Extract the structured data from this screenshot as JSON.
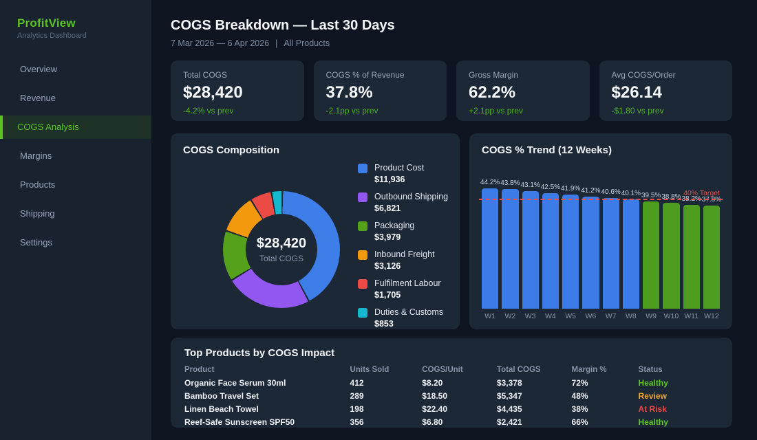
{
  "app": {
    "name": "ProfitView",
    "tagline": "Analytics Dashboard"
  },
  "sidebar": {
    "items": [
      {
        "label": "Overview",
        "active": false
      },
      {
        "label": "Revenue",
        "active": false
      },
      {
        "label": "COGS Analysis",
        "active": true
      },
      {
        "label": "Margins",
        "active": false
      },
      {
        "label": "Products",
        "active": false
      },
      {
        "label": "Shipping",
        "active": false
      },
      {
        "label": "Settings",
        "active": false
      }
    ]
  },
  "header": {
    "title": "COGS Breakdown — Last 30 Days",
    "date_range": "7 Mar 2026 — 6 Apr 2026",
    "separator": "|",
    "filter": "All Products"
  },
  "kpis": [
    {
      "label": "Total COGS",
      "value": "$28,420",
      "delta": "-4.2% vs prev"
    },
    {
      "label": "COGS % of Revenue",
      "value": "37.8%",
      "delta": "-2.1pp vs prev"
    },
    {
      "label": "Gross Margin",
      "value": "62.2%",
      "delta": "+2.1pp vs prev"
    },
    {
      "label": "Avg COGS/Order",
      "value": "$26.14",
      "delta": "-$1.80 vs prev"
    }
  ],
  "colors": {
    "accent_green": "#5cc321",
    "positive_delta": "#4fb224",
    "target_red": "#e2514d",
    "status_healthy": "#5cc328",
    "status_review": "#f5a623",
    "status_at_risk": "#ef4444"
  },
  "chart_data": [
    {
      "type": "pie",
      "title": "COGS Composition",
      "center_value": "$28,420",
      "center_label": "Total COGS",
      "legend_position": "right",
      "segments": [
        {
          "label": "Product Cost",
          "value": 11936,
          "display": "$11,936",
          "color": "#3d7ee8"
        },
        {
          "label": "Outbound Shipping",
          "value": 6821,
          "display": "$6,821",
          "color": "#9257f0"
        },
        {
          "label": "Packaging",
          "value": 3979,
          "display": "$3,979",
          "color": "#55a11c"
        },
        {
          "label": "Inbound Freight",
          "value": 3126,
          "display": "$3,126",
          "color": "#f2990d"
        },
        {
          "label": "Fulfilment Labour",
          "value": 1705,
          "display": "$1,705",
          "color": "#ec4a44"
        },
        {
          "label": "Duties & Customs",
          "value": 853,
          "display": "$853",
          "color": "#16b8ce"
        }
      ]
    },
    {
      "type": "bar",
      "title": "COGS % Trend (12 Weeks)",
      "categories": [
        "W1",
        "W2",
        "W3",
        "W4",
        "W5",
        "W6",
        "W7",
        "W8",
        "W9",
        "W10",
        "W11",
        "W12"
      ],
      "values": [
        44.2,
        43.8,
        43.1,
        42.5,
        41.9,
        41.2,
        40.6,
        40.1,
        39.5,
        38.8,
        38.2,
        37.8
      ],
      "bar_colors": [
        "#3b7ce8",
        "#3b7ce8",
        "#3b7ce8",
        "#3b7ce8",
        "#3b7ce8",
        "#3b7ce8",
        "#3b7ce8",
        "#3b7ce8",
        "#4f9d1e",
        "#4f9d1e",
        "#4f9d1e",
        "#4f9d1e"
      ],
      "value_suffix": "%",
      "ylim": [
        0,
        53
      ],
      "grid": false,
      "target": {
        "value": 40,
        "label": "40% Target",
        "color": "#e2514d"
      }
    }
  ],
  "table": {
    "title": "Top Products by COGS Impact",
    "columns": [
      "Product",
      "Units Sold",
      "COGS/Unit",
      "Total COGS",
      "Margin %",
      "Status"
    ],
    "rows": [
      {
        "product": "Organic Face Serum 30ml",
        "units": "412",
        "cogs_unit": "$8.20",
        "total": "$3,378",
        "margin": "72%",
        "status": "Healthy",
        "status_color": "#5cc328"
      },
      {
        "product": "Bamboo Travel Set",
        "units": "289",
        "cogs_unit": "$18.50",
        "total": "$5,347",
        "margin": "48%",
        "status": "Review",
        "status_color": "#f5a623"
      },
      {
        "product": "Linen Beach Towel",
        "units": "198",
        "cogs_unit": "$22.40",
        "total": "$4,435",
        "margin": "38%",
        "status": "At Risk",
        "status_color": "#ef4444"
      },
      {
        "product": "Reef-Safe Sunscreen SPF50",
        "units": "356",
        "cogs_unit": "$6.80",
        "total": "$2,421",
        "margin": "66%",
        "status": "Healthy",
        "status_color": "#5cc328"
      }
    ]
  }
}
